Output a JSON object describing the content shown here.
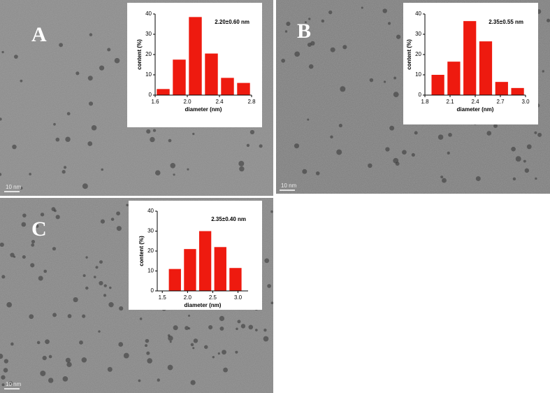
{
  "chart_data": [
    {
      "type": "histogram",
      "panel_label": "A",
      "scale_bar": "10 nm",
      "annotation": "2.20±0.60 nm",
      "x_label": "diameter (nm)",
      "y_label": "content (%)",
      "color": "#ee1a0f",
      "bins": [
        1.6,
        1.8,
        2.0,
        2.2,
        2.4,
        2.6,
        2.8
      ],
      "values": [
        3,
        17.5,
        38.5,
        20.5,
        8.5,
        6
      ],
      "xlim": [
        1.6,
        2.8
      ],
      "xticks": [
        1.6,
        {
          "value": 2,
          "label": "2.0"
        },
        2.4,
        2.8
      ],
      "ylim": [
        0,
        40
      ],
      "yticks": [
        0,
        10,
        20,
        30,
        40
      ]
    },
    {
      "type": "histogram",
      "panel_label": "B",
      "scale_bar": "10 nm",
      "annotation": "2.35±0.55 nm",
      "x_label": "diameter (nm)",
      "y_label": "content (%)",
      "color": "#ee1a0f",
      "bins": [
        1.86,
        2.05,
        2.24,
        2.43,
        2.62,
        2.81,
        3.0
      ],
      "values": [
        10,
        16.5,
        36.5,
        26.5,
        6.5,
        3.5
      ],
      "xlim": [
        1.8,
        3.0
      ],
      "xticks": [
        1.8,
        2.1,
        2.4,
        2.7,
        {
          "value": 3,
          "label": "3.0"
        }
      ],
      "ylim": [
        0,
        40
      ],
      "yticks": [
        0,
        10,
        20,
        30,
        40
      ]
    },
    {
      "type": "histogram",
      "panel_label": "C",
      "scale_bar": "10 nm",
      "annotation": "2.35±0.40 nm",
      "x_label": "diameter (nm)",
      "y_label": "content (%)",
      "color": "#ee1a0f",
      "bins": [
        1.6,
        1.9,
        2.2,
        2.5,
        2.8,
        3.1
      ],
      "values": [
        11,
        21,
        30,
        22,
        11.5
      ],
      "xlim": [
        1.4,
        3.2
      ],
      "xticks": [
        1.5,
        {
          "value": 2,
          "label": "2.0"
        },
        2.5,
        {
          "value": 3,
          "label": "3.0"
        }
      ],
      "ylim": [
        0,
        40
      ],
      "yticks": [
        0,
        10,
        20,
        30,
        40
      ]
    }
  ]
}
